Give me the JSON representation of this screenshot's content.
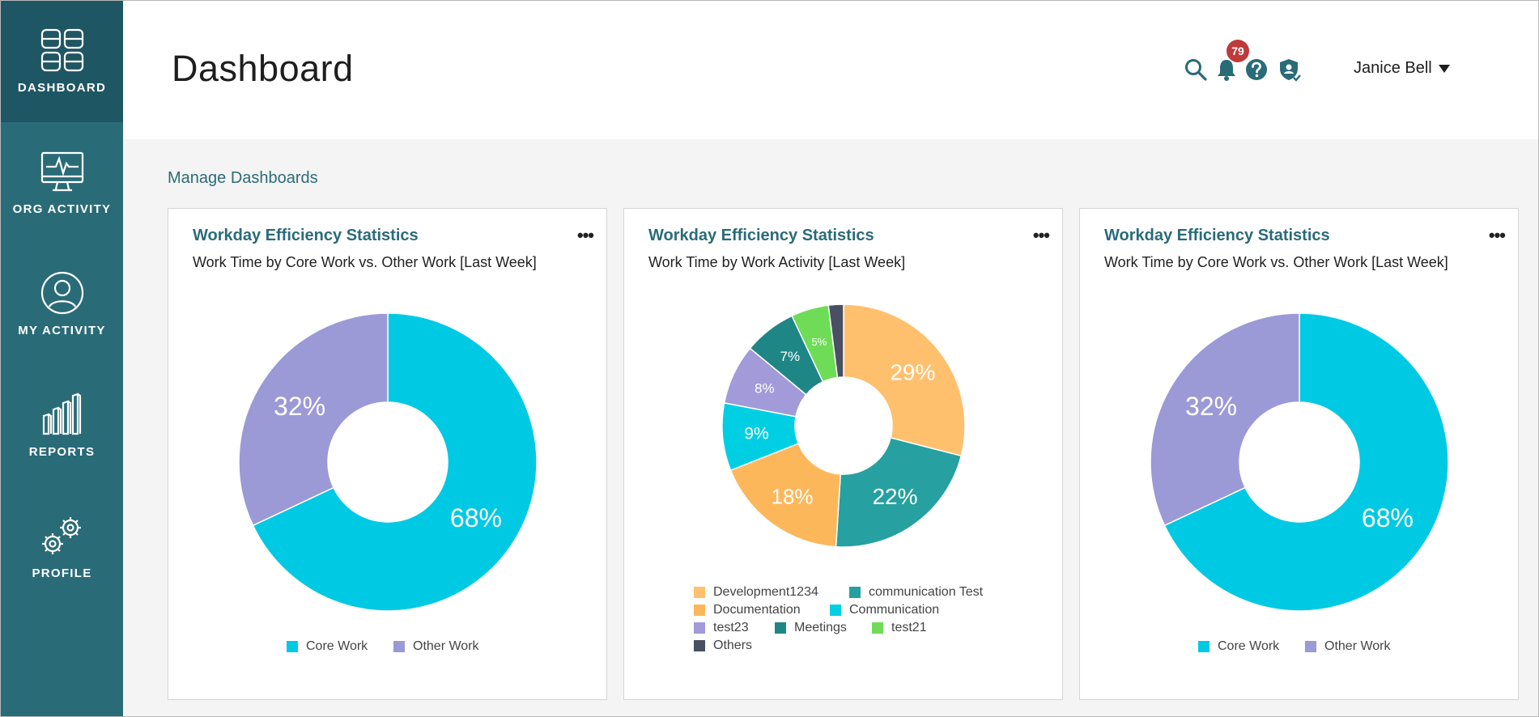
{
  "sidebar": {
    "items": [
      {
        "label": "DASHBOARD",
        "icon": "dashboard-grid-icon",
        "active": true
      },
      {
        "label": "ORG ACTIVITY",
        "icon": "monitor-pulse-icon",
        "active": false
      },
      {
        "label": "MY ACTIVITY",
        "icon": "user-circle-icon",
        "active": false
      },
      {
        "label": "REPORTS",
        "icon": "bar-chart-icon",
        "active": false
      },
      {
        "label": "PROFILE",
        "icon": "gears-icon",
        "active": false
      }
    ]
  },
  "header": {
    "title": "Dashboard",
    "notification_count": "79",
    "user_name": "Janice Bell"
  },
  "main": {
    "manage_link": "Manage Dashboards"
  },
  "colors": {
    "accent": "#2a6b78",
    "core_work": "#00c9e4",
    "other_work": "#9b99d6"
  },
  "cards": [
    {
      "title": "Workday Efficiency Statistics",
      "subtitle": "Work Time by Core Work vs. Other Work [Last Week]",
      "menu": "•••"
    },
    {
      "title": "Workday Efficiency Statistics",
      "subtitle": "Work Time by Work Activity [Last Week]",
      "menu": "•••"
    },
    {
      "title": "Workday Efficiency Statistics",
      "subtitle": "Work Time by Core Work vs. Other Work [Last Week]",
      "menu": "•••"
    }
  ],
  "chart_data": [
    {
      "type": "pie",
      "variant": "donut",
      "categories": [
        "Core Work",
        "Other Work"
      ],
      "values": [
        68,
        32
      ],
      "labels": [
        "68%",
        "32%"
      ],
      "colors": [
        "#00c9e4",
        "#9b99d6"
      ],
      "legend_placement": "bottom"
    },
    {
      "type": "pie",
      "variant": "donut",
      "categories": [
        "Development1234",
        "communication Test",
        "Documentation",
        "Communication",
        "test23",
        "Meetings",
        "test21",
        "Others"
      ],
      "values": [
        29,
        22,
        18,
        9,
        8,
        7,
        5,
        2
      ],
      "labels": [
        "29%",
        "22%",
        "18%",
        "9%",
        "8%",
        "7%",
        "5%",
        ""
      ],
      "colors": [
        "#ffc06e",
        "#26a0a0",
        "#fdb75b",
        "#00cfe3",
        "#a29ad9",
        "#1f8686",
        "#6edc56",
        "#4a5063"
      ],
      "legend_placement": "bottom"
    },
    {
      "type": "pie",
      "variant": "donut",
      "categories": [
        "Core Work",
        "Other Work"
      ],
      "values": [
        68,
        32
      ],
      "labels": [
        "68%",
        "32%"
      ],
      "colors": [
        "#00c9e4",
        "#9b99d6"
      ],
      "legend_placement": "bottom"
    }
  ]
}
